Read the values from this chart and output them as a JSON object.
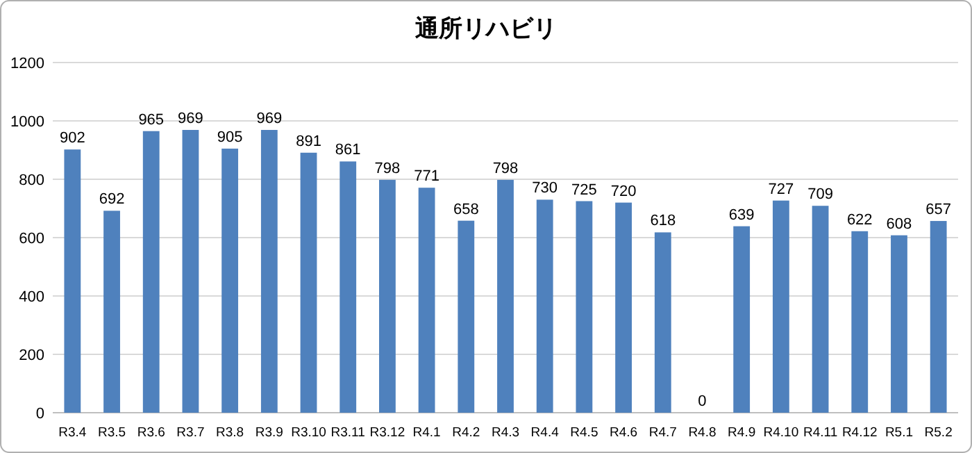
{
  "chart_data": {
    "type": "bar",
    "title": "通所リハビリ",
    "categories": [
      "R3.4",
      "R3.5",
      "R3.6",
      "R3.7",
      "R3.8",
      "R3.9",
      "R3.10",
      "R3.11",
      "R3.12",
      "R4.1",
      "R4.2",
      "R4.3",
      "R4.4",
      "R4.5",
      "R4.6",
      "R4.7",
      "R4.8",
      "R4.9",
      "R4.10",
      "R4.11",
      "R4.12",
      "R5.1",
      "R5.2"
    ],
    "values": [
      902,
      692,
      965,
      969,
      905,
      969,
      891,
      861,
      798,
      771,
      658,
      798,
      730,
      725,
      720,
      618,
      0,
      639,
      727,
      709,
      622,
      608,
      657
    ],
    "color": "#4f81bd",
    "ylim": [
      0,
      1200
    ],
    "yticks": [
      0,
      200,
      400,
      600,
      800,
      1000,
      1200
    ],
    "grid": "y",
    "data_labels": true
  }
}
